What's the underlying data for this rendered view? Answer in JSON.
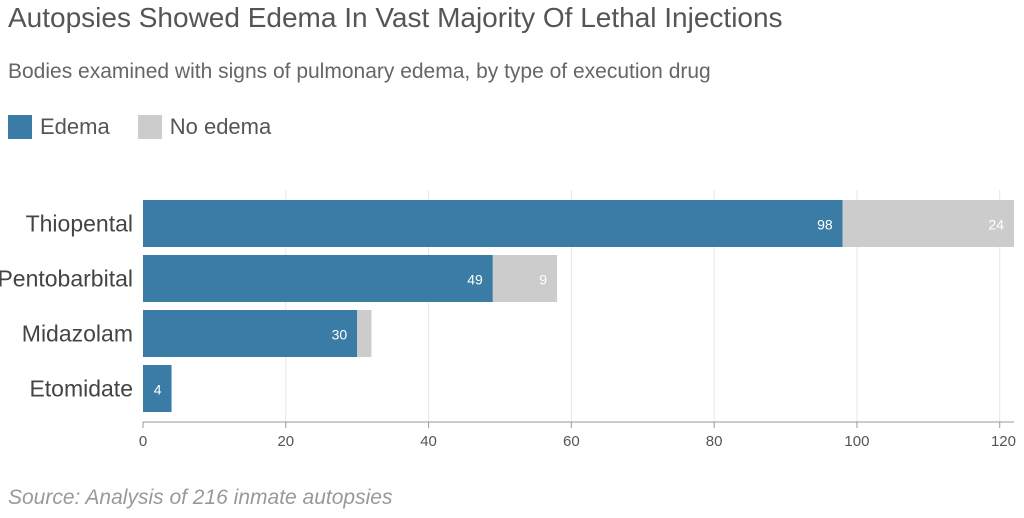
{
  "title": "Autopsies Showed Edema In Vast Majority Of Lethal Injections",
  "subtitle": "Bodies examined with signs of pulmonary edema, by type of execution drug",
  "source": "Source: Analysis of 216 inmate autopsies",
  "colors": {
    "edema": "#3a7ca5",
    "no_edema": "#cccccc",
    "grid": "#e6e6e6",
    "axis": "#999999"
  },
  "legend": [
    {
      "label": "Edema"
    },
    {
      "label": "No edema"
    }
  ],
  "chart_data": {
    "type": "bar",
    "orientation": "horizontal",
    "stacked": true,
    "categories": [
      "Thiopental",
      "Pentobarbital",
      "Midazolam",
      "Etomidate"
    ],
    "series": [
      {
        "name": "Edema",
        "values": [
          98,
          49,
          30,
          4
        ],
        "labels": [
          "98",
          "49",
          "30",
          "4"
        ]
      },
      {
        "name": "No edema",
        "values": [
          24,
          9,
          2,
          0
        ],
        "labels": [
          "24",
          "9",
          "",
          ""
        ]
      }
    ],
    "xlim": [
      0,
      122
    ],
    "xticks": [
      0,
      20,
      40,
      60,
      80,
      100,
      120
    ],
    "xtick_labels": [
      "0",
      "20",
      "40",
      "60",
      "80",
      "100",
      "120"
    ],
    "grid": true,
    "legend_position": "top-left"
  }
}
